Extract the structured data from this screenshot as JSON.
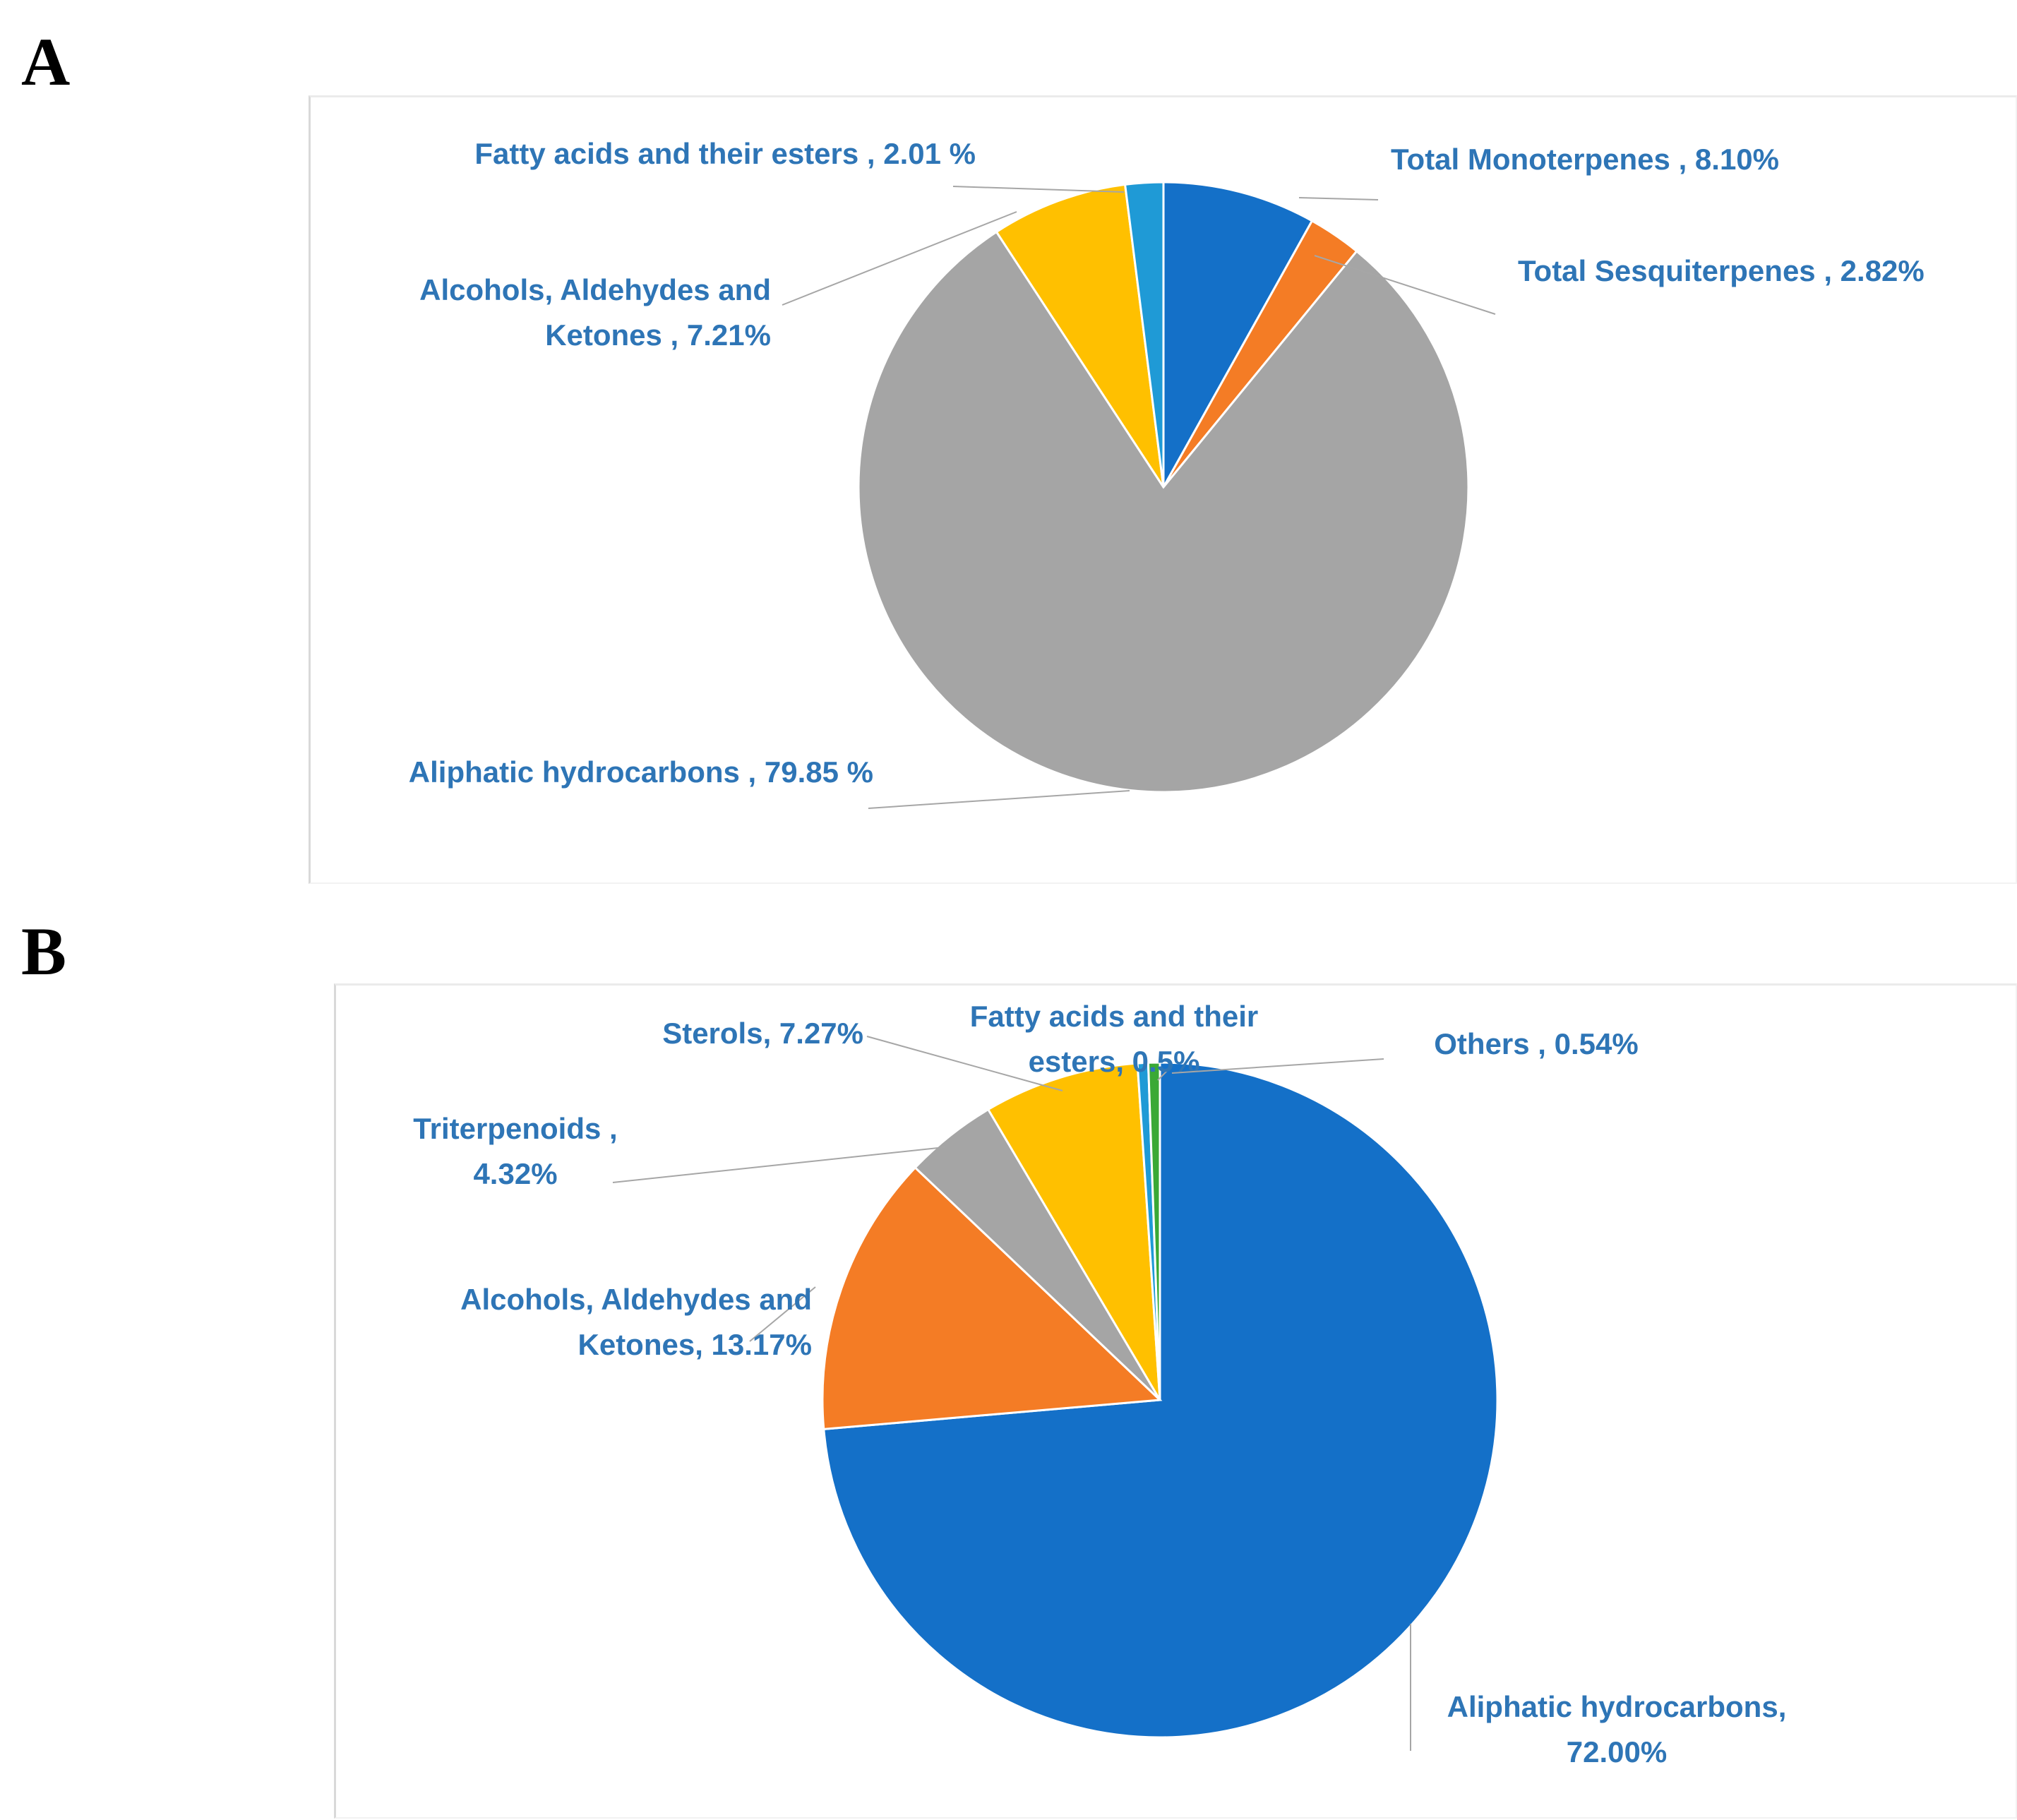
{
  "chart_data": [
    {
      "panel": "A",
      "type": "pie",
      "title": "",
      "slices": [
        {
          "label": "Total Monoterpenes",
          "value": 8.1,
          "display": "Total Monoterpenes , 8.10%",
          "color": "#1470c8"
        },
        {
          "label": "Total Sesquiterpenes",
          "value": 2.82,
          "display": "Total Sesquiterpenes , 2.82%",
          "color": "#f47c25"
        },
        {
          "label": "Aliphatic hydrocarbons",
          "value": 79.85,
          "display": "Aliphatic hydrocarbons , 79.85 %",
          "color": "#a5a5a5"
        },
        {
          "label": "Alcohols, Aldehydes and Ketones",
          "value": 7.21,
          "display": "Alcohols, Aldehydes and Ketones , 7.21%",
          "color": "#ffc000"
        },
        {
          "label": "Fatty acids and their esters",
          "value": 2.01,
          "display": "Fatty acids and their esters , 2.01 %",
          "color": "#1f9ad6"
        }
      ]
    },
    {
      "panel": "B",
      "type": "pie",
      "title": "",
      "slices": [
        {
          "label": "Aliphatic hydrocarbons",
          "value": 72.0,
          "display": "Aliphatic hydrocarbons, 72.00%",
          "color": "#1470c8"
        },
        {
          "label": "Alcohols, Aldehydes and Ketones",
          "value": 13.17,
          "display": "Alcohols, Aldehydes and Ketones, 13.17%",
          "color": "#f47c25"
        },
        {
          "label": "Triterpenoids",
          "value": 4.32,
          "display": "Triterpenoids , 4.32%",
          "color": "#a5a5a5"
        },
        {
          "label": "Sterols",
          "value": 7.27,
          "display": "Sterols, 7.27%",
          "color": "#ffc000"
        },
        {
          "label": "Fatty acids and their esters",
          "value": 0.5,
          "display": "Fatty acids and their esters, 0.5%",
          "color": "#1f9ad6"
        },
        {
          "label": "Others",
          "value": 0.54,
          "display": "Others , 0.54%",
          "color": "#3aa935"
        }
      ]
    }
  ],
  "panel_letters": {
    "a": "A",
    "b": "B"
  }
}
